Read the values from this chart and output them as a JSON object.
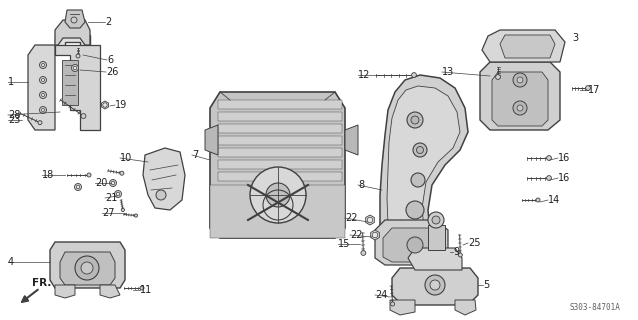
{
  "bg_color": "#ffffff",
  "diagram_code": "S303-84701A",
  "line_color": "#404040",
  "text_color": "#202020",
  "font_size": 6.5,
  "figsize": [
    6.38,
    3.2
  ],
  "dpi": 100
}
